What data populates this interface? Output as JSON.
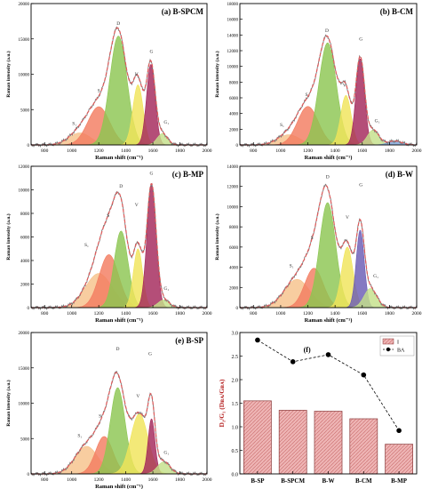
{
  "chart_data": [
    {
      "type": "area",
      "title": "(a) B-SPCM",
      "xlabel": "Raman shift (cm⁻¹)",
      "ylabel": "Raman intensity (a.u.)",
      "xlim": [
        700,
        2000
      ],
      "ylim": [
        0,
        20000
      ],
      "xticks": [
        "800",
        "1000",
        "1200",
        "1400",
        "1600",
        "1800",
        "2000"
      ],
      "yticks": [
        "0",
        "5000",
        "10000",
        "15000",
        "20000"
      ],
      "fit_color": "#e15b5b",
      "peaks": [
        {
          "label": "S₁",
          "center": 1060,
          "height": 1700,
          "width": 190,
          "color": "#f6c28b"
        },
        {
          "label": "S",
          "center": 1200,
          "height": 5400,
          "width": 190,
          "color": "#f37c60"
        },
        {
          "label": "D",
          "center": 1345,
          "height": 15400,
          "width": 150,
          "color": "#8cc652"
        },
        {
          "label": "V",
          "center": 1490,
          "height": 8500,
          "width": 90,
          "color": "#f0e45a"
        },
        {
          "label": "G",
          "center": 1585,
          "height": 11400,
          "width": 75,
          "color": "#a3275a"
        },
        {
          "label": "G₁",
          "center": 1670,
          "height": 1600,
          "width": 90,
          "color": "#c4e08a"
        }
      ],
      "peak_labels": [
        {
          "text": "S₁",
          "x": 1020,
          "y": 2800
        },
        {
          "text": "S",
          "x": 1200,
          "y": 7500
        },
        {
          "text": "D",
          "x": 1345,
          "y": 17000
        },
        {
          "text": "V",
          "x": 1480,
          "y": 9800
        },
        {
          "text": "G",
          "x": 1590,
          "y": 13000
        },
        {
          "text": "G₁",
          "x": 1700,
          "y": 3000
        }
      ]
    },
    {
      "type": "area",
      "title": "(b) B-CM",
      "xlabel": "Raman shift (cm⁻¹)",
      "ylabel": "Raman intensity (a.u.)",
      "xlim": [
        700,
        2000
      ],
      "ylim": [
        0,
        18000
      ],
      "xticks": [
        "800",
        "1000",
        "1200",
        "1400",
        "1600",
        "1800",
        "2000"
      ],
      "yticks": [
        "0",
        "2000",
        "4000",
        "6000",
        "8000",
        "10000",
        "12000",
        "14000",
        "16000",
        "18000"
      ],
      "fit_color": "#e15b5b",
      "peaks": [
        {
          "label": "S₁",
          "center": 1060,
          "height": 1300,
          "width": 190,
          "color": "#f6c28b"
        },
        {
          "label": "S",
          "center": 1200,
          "height": 4900,
          "width": 180,
          "color": "#f37c60"
        },
        {
          "label": "D",
          "center": 1345,
          "height": 13000,
          "width": 150,
          "color": "#8cc652"
        },
        {
          "label": "V",
          "center": 1480,
          "height": 6300,
          "width": 90,
          "color": "#f0e45a"
        },
        {
          "label": "G",
          "center": 1585,
          "height": 11000,
          "width": 75,
          "color": "#a3275a"
        },
        {
          "label": "G₁",
          "center": 1680,
          "height": 1900,
          "width": 100,
          "color": "#c4e08a"
        },
        {
          "label": "",
          "center": 1840,
          "height": 500,
          "width": 120,
          "color": "#7da3d8"
        }
      ],
      "peak_labels": [
        {
          "text": "S₁",
          "x": 1010,
          "y": 2400
        },
        {
          "text": "S",
          "x": 1190,
          "y": 6200
        },
        {
          "text": "D",
          "x": 1340,
          "y": 14400
        },
        {
          "text": "V",
          "x": 1470,
          "y": 7400
        },
        {
          "text": "G",
          "x": 1590,
          "y": 13300
        },
        {
          "text": "G₁",
          "x": 1710,
          "y": 2900
        }
      ]
    },
    {
      "type": "area",
      "title": "(c) B-MP",
      "xlabel": "Raman shift (cm⁻¹)",
      "ylabel": "Raman intensity (a.u.)",
      "xlim": [
        700,
        2000
      ],
      "ylim": [
        0,
        12000
      ],
      "xticks": [
        "800",
        "1000",
        "1200",
        "1400",
        "1600",
        "1800",
        "2000"
      ],
      "yticks": [
        "0",
        "2000",
        "4000",
        "6000",
        "8000",
        "10000",
        "12000"
      ],
      "fit_color": "#e15b5b",
      "peaks": [
        {
          "label": "S₁",
          "center": 1200,
          "height": 2900,
          "width": 230,
          "color": "#f6c28b"
        },
        {
          "label": "S",
          "center": 1275,
          "height": 4500,
          "width": 170,
          "color": "#f37c60"
        },
        {
          "label": "D",
          "center": 1365,
          "height": 6500,
          "width": 120,
          "color": "#8cc652"
        },
        {
          "label": "V",
          "center": 1490,
          "height": 5000,
          "width": 80,
          "color": "#f0e45a"
        },
        {
          "label": "G",
          "center": 1590,
          "height": 10400,
          "width": 80,
          "color": "#a3275a"
        },
        {
          "label": "G₁",
          "center": 1680,
          "height": 650,
          "width": 100,
          "color": "#c4e08a"
        }
      ],
      "peak_labels": [
        {
          "text": "S₁",
          "x": 1110,
          "y": 5200
        },
        {
          "text": "S",
          "x": 1270,
          "y": 7700
        },
        {
          "text": "D",
          "x": 1365,
          "y": 10200
        },
        {
          "text": "V",
          "x": 1480,
          "y": 8600
        },
        {
          "text": "G",
          "x": 1590,
          "y": 11300
        },
        {
          "text": "G₁",
          "x": 1700,
          "y": 1500
        }
      ]
    },
    {
      "type": "area",
      "title": "(d) B-W",
      "xlabel": "Raman shift (cm⁻¹)",
      "ylabel": "Raman intensity (a.u.)",
      "xlim": [
        700,
        2000
      ],
      "ylim": [
        0,
        14000
      ],
      "xticks": [
        "800",
        "1000",
        "1200",
        "1400",
        "1600",
        "1800",
        "2000"
      ],
      "yticks": [
        "0",
        "2000",
        "4000",
        "6000",
        "8000",
        "10000",
        "12000",
        "14000"
      ],
      "fit_color": "#e15b5b",
      "peaks": [
        {
          "label": "S₁",
          "center": 1120,
          "height": 2800,
          "width": 220,
          "color": "#f6c28b"
        },
        {
          "label": "S",
          "center": 1245,
          "height": 3900,
          "width": 160,
          "color": "#f37c60"
        },
        {
          "label": "D",
          "center": 1345,
          "height": 10400,
          "width": 140,
          "color": "#8cc652"
        },
        {
          "label": "V",
          "center": 1490,
          "height": 6000,
          "width": 100,
          "color": "#f0e45a"
        },
        {
          "label": "G",
          "center": 1585,
          "height": 7700,
          "width": 70,
          "color": "#6a5bb5"
        },
        {
          "label": "G₁",
          "center": 1660,
          "height": 1900,
          "width": 110,
          "color": "#c4e08a"
        }
      ],
      "peak_labels": [
        {
          "text": "S₁",
          "x": 1080,
          "y": 4000
        },
        {
          "text": "S",
          "x": 1230,
          "y": 6800
        },
        {
          "text": "D",
          "x": 1345,
          "y": 12800
        },
        {
          "text": "V",
          "x": 1490,
          "y": 8800
        },
        {
          "text": "G",
          "x": 1590,
          "y": 12000
        },
        {
          "text": "G₁",
          "x": 1700,
          "y": 3000
        }
      ]
    },
    {
      "type": "area",
      "title": "(e) B-SP",
      "xlabel": "Raman shift (cm⁻¹)",
      "ylabel": "Raman intensity (a.u.)",
      "xlim": [
        700,
        2000
      ],
      "ylim": [
        0,
        20000
      ],
      "xticks": [
        "800",
        "1000",
        "1200",
        "1400",
        "1600",
        "1800",
        "2000"
      ],
      "yticks": [
        "0",
        "5000",
        "10000",
        "15000",
        "20000"
      ],
      "fit_color": "#e15b5b",
      "peaks": [
        {
          "label": "S₁",
          "center": 1110,
          "height": 3900,
          "width": 200,
          "color": "#f6c28b"
        },
        {
          "label": "S",
          "center": 1240,
          "height": 5300,
          "width": 150,
          "color": "#f37c60"
        },
        {
          "label": "D",
          "center": 1340,
          "height": 12200,
          "width": 130,
          "color": "#8cc652"
        },
        {
          "label": "V",
          "center": 1500,
          "height": 8500,
          "width": 150,
          "color": "#f0e45a"
        },
        {
          "label": "G",
          "center": 1590,
          "height": 7800,
          "width": 60,
          "color": "#a3275a"
        },
        {
          "label": "G₁",
          "center": 1680,
          "height": 1700,
          "width": 110,
          "color": "#c4e08a"
        }
      ],
      "peak_labels": [
        {
          "text": "S₁",
          "x": 1060,
          "y": 5200
        },
        {
          "text": "S",
          "x": 1210,
          "y": 8000
        },
        {
          "text": "D",
          "x": 1340,
          "y": 17500
        },
        {
          "text": "V",
          "x": 1490,
          "y": 10800
        },
        {
          "text": "G",
          "x": 1580,
          "y": 16800
        },
        {
          "text": "G₁",
          "x": 1700,
          "y": 2800
        }
      ]
    },
    {
      "type": "bar",
      "title": "(f)",
      "ylabel": "D₁/G₁ (Dʙᴀ/Gʙᴀ)",
      "ylim": [
        0,
        3.0
      ],
      "yticks": [
        "0.0",
        "0.5",
        "1.0",
        "1.5",
        "2.0",
        "2.5",
        "3.0"
      ],
      "categories": [
        "B-SP",
        "B-SPCM",
        "B-W",
        "B-CM",
        "B-MP"
      ],
      "bar_color": "#e8a0a0",
      "line_color": "#000000",
      "series": [
        {
          "name": "I",
          "kind": "bar",
          "values": [
            1.55,
            1.35,
            1.33,
            1.17,
            0.63
          ]
        },
        {
          "name": "BA",
          "kind": "line",
          "values": [
            2.84,
            2.38,
            2.53,
            2.1,
            0.92
          ]
        }
      ],
      "legend_position": "top-right"
    }
  ]
}
